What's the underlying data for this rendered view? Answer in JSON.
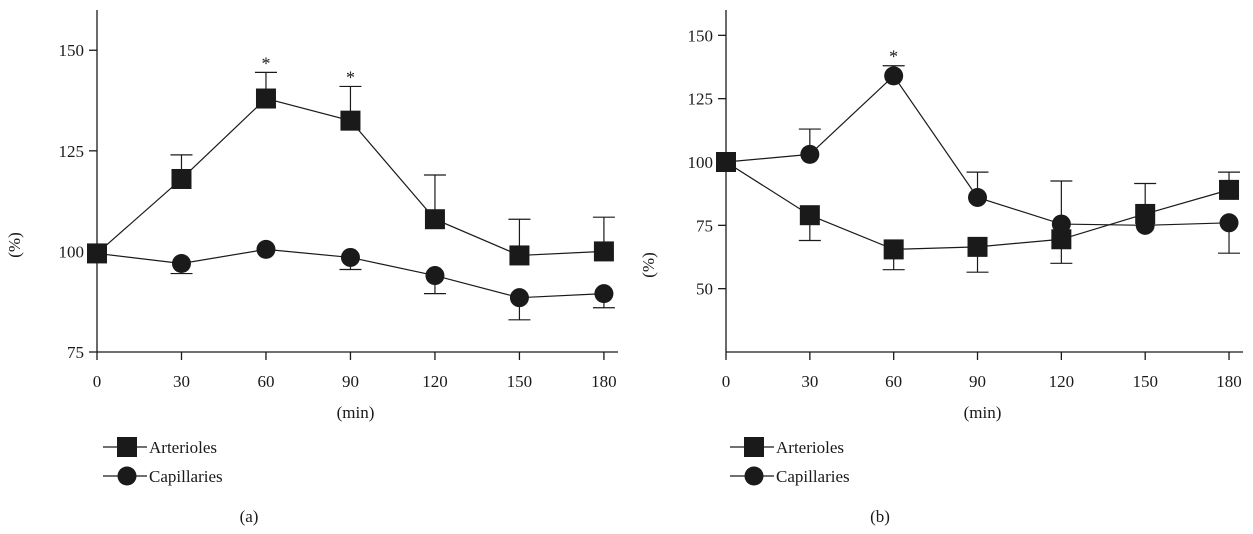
{
  "chart_data": [
    {
      "type": "line",
      "panel_label": "(a)",
      "xlabel": "(min)",
      "ylabel": "(%)",
      "x": [
        0,
        30,
        60,
        90,
        120,
        150,
        180
      ],
      "xlim": [
        0,
        185
      ],
      "ylim": [
        75,
        160
      ],
      "xticks": [
        "0",
        "30",
        "60",
        "90",
        "120",
        "150",
        "180"
      ],
      "yticks": [
        75,
        100,
        125,
        150
      ],
      "series": [
        {
          "name": "Arterioles",
          "marker": "square",
          "values": [
            99.5,
            118,
            138,
            132.5,
            108,
            99,
            100
          ],
          "err_upper": [
            0,
            6,
            6.5,
            8.5,
            11,
            9,
            8.5
          ],
          "err_lower": [
            0,
            0,
            0,
            0,
            0,
            0,
            0
          ]
        },
        {
          "name": "Capillaries",
          "marker": "circle",
          "values": [
            99.5,
            97,
            100.5,
            98.5,
            94,
            88.5,
            89.5
          ],
          "err_upper": [
            0,
            0,
            0,
            0,
            0,
            0,
            0
          ],
          "err_lower": [
            0,
            2.5,
            0,
            3,
            4.5,
            5.5,
            3.5
          ]
        }
      ],
      "annotations": [
        {
          "text": "*",
          "x": 60
        },
        {
          "text": "*",
          "x": 90
        }
      ],
      "legend": "bottom-left"
    },
    {
      "type": "line",
      "panel_label": "(b)",
      "xlabel": "(min)",
      "ylabel": "(%)",
      "x": [
        0,
        30,
        60,
        90,
        120,
        150,
        180
      ],
      "xlim": [
        0,
        185
      ],
      "ylim": [
        25,
        160
      ],
      "xticks": [
        "0",
        "30",
        "60",
        "90",
        "120",
        "150",
        "180"
      ],
      "yticks": [
        50,
        75,
        100,
        125,
        150
      ],
      "series": [
        {
          "name": "Arterioles",
          "marker": "square",
          "values": [
            100,
            79,
            65.5,
            66.5,
            69.5,
            79.5,
            89
          ],
          "err_upper": [
            0,
            0,
            0,
            0,
            0,
            12,
            7
          ],
          "err_lower": [
            0,
            10,
            8,
            10,
            9.5,
            0,
            0
          ]
        },
        {
          "name": "Capillaries",
          "marker": "circle",
          "values": [
            100,
            103,
            134,
            86,
            75.5,
            75,
            76
          ],
          "err_upper": [
            0,
            10,
            4,
            10,
            17,
            0,
            0
          ],
          "err_lower": [
            0,
            0,
            0,
            0,
            0,
            0,
            12
          ]
        }
      ],
      "annotations": [
        {
          "text": "*",
          "x": 60
        }
      ],
      "legend": "bottom-left"
    }
  ]
}
